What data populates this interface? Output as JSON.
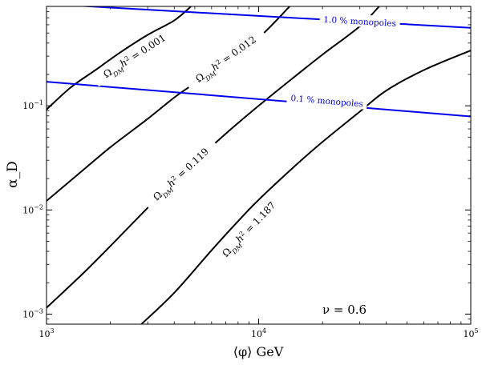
{
  "chart_data": {
    "type": "line",
    "title": "",
    "xlabel": "⟨φ⟩ GeV",
    "ylabel": "α_D",
    "xscale": "log",
    "yscale": "log",
    "xlim": [
      1000,
      100000
    ],
    "ylim": [
      0.0008,
      0.9
    ],
    "x_ticks": [
      {
        "value": 1000,
        "base": "10",
        "exp": "3"
      },
      {
        "value": 10000,
        "base": "10",
        "exp": "4"
      },
      {
        "value": 100000,
        "base": "10",
        "exp": "5"
      }
    ],
    "y_ticks": [
      {
        "value": 0.001,
        "base": "10",
        "exp": "−3"
      },
      {
        "value": 0.01,
        "base": "10",
        "exp": "−2"
      },
      {
        "value": 0.1,
        "base": "10",
        "exp": "−1"
      }
    ],
    "annotation": "ν = 0.6",
    "contours": [
      {
        "name": "Ω_DM h² = 0.001",
        "label_parts": {
          "sym": "Ω",
          "sub": "DM",
          "h": "h",
          "sup": "2",
          "value": " = 0.001"
        },
        "color": "#000000",
        "points": [
          [
            1000,
            0.092
          ],
          [
            1300,
            0.15
          ],
          [
            1700,
            0.22
          ],
          [
            2200,
            0.32
          ],
          [
            3000,
            0.48
          ],
          [
            4000,
            0.66
          ],
          [
            4800,
            0.9
          ]
        ],
        "label_pos": [
          2600,
          0.3
        ]
      },
      {
        "name": "Ω_DM h² = 0.012",
        "label_parts": {
          "sym": "Ω",
          "sub": "DM",
          "h": "h",
          "sup": "2",
          "value": " = 0.012"
        },
        "color": "#000000",
        "points": [
          [
            1000,
            0.0122
          ],
          [
            1500,
            0.0245
          ],
          [
            2000,
            0.04
          ],
          [
            3000,
            0.075
          ],
          [
            4000,
            0.12
          ],
          [
            5000,
            0.165
          ],
          [
            7000,
            0.27
          ],
          [
            10000,
            0.45
          ],
          [
            14000,
            0.9
          ]
        ],
        "label_pos": [
          7000,
          0.28
        ]
      },
      {
        "name": "Ω_DM h² = 0.119",
        "label_parts": {
          "sym": "Ω",
          "sub": "DM",
          "h": "h",
          "sup": "2",
          "value": " = 0.119"
        },
        "color": "#000000",
        "points": [
          [
            1000,
            0.00115
          ],
          [
            1500,
            0.0025
          ],
          [
            2000,
            0.0045
          ],
          [
            3000,
            0.0105
          ],
          [
            4000,
            0.019
          ],
          [
            5000,
            0.029
          ],
          [
            7000,
            0.054
          ],
          [
            10000,
            0.1
          ],
          [
            15000,
            0.195
          ],
          [
            20000,
            0.31
          ],
          [
            30000,
            0.58
          ],
          [
            37000,
            0.9
          ]
        ],
        "label_pos": [
          4300,
          0.022
        ]
      },
      {
        "name": "Ω_DM h² = 1.187",
        "label_parts": {
          "sym": "Ω",
          "sub": "DM",
          "h": "h",
          "sup": "2",
          "value": " = 1.187"
        },
        "color": "#000000",
        "points": [
          [
            2800,
            0.0008
          ],
          [
            4000,
            0.0016
          ],
          [
            6000,
            0.0041
          ],
          [
            8000,
            0.0078
          ],
          [
            10000,
            0.0125
          ],
          [
            15000,
            0.027
          ],
          [
            20000,
            0.045
          ],
          [
            30000,
            0.088
          ],
          [
            40000,
            0.14
          ],
          [
            60000,
            0.22
          ],
          [
            100000,
            0.34
          ]
        ],
        "label_pos": [
          9000,
          0.0065
        ]
      }
    ],
    "monopole_lines": [
      {
        "name": "1.0 % monopoles",
        "label": "1.0 % monopoles",
        "color": "#0000ee",
        "points": [
          [
            1000,
            0.95
          ],
          [
            100000,
            0.56
          ]
        ],
        "label_pos": [
          30000,
          0.65
        ]
      },
      {
        "name": "0.1 % monopoles",
        "label": "0.1 % monopoles",
        "color": "#0000ee",
        "points": [
          [
            1000,
            0.17
          ],
          [
            100000,
            0.079
          ]
        ],
        "label_pos": [
          21000,
          0.112
        ]
      }
    ]
  }
}
